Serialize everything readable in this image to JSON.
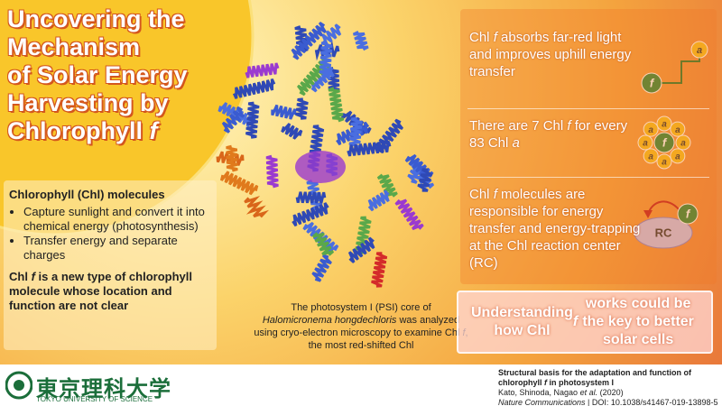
{
  "title": {
    "lines": [
      [
        "Uncovering the"
      ],
      [
        "Mechanism"
      ],
      [
        "of Solar Energy"
      ],
      [
        "Harvesting by"
      ],
      [
        "Chlorophyll ",
        {
          "italic": "f"
        }
      ]
    ]
  },
  "info_box": {
    "heading": "Chlorophyll (Chl) molecules",
    "bullets": [
      [
        "Capture sunlight and convert it into chemical energy (photosynthesis)"
      ],
      [
        "Transfer energy and separate charges"
      ]
    ],
    "note": [
      "Chl ",
      {
        "italic": "f"
      },
      " is a new type of chlorophyll molecule whose location and function are not clear"
    ]
  },
  "caption": {
    "lines": [
      [
        "The photosystem I (PSI) core of"
      ],
      [
        {
          "italic": "Halomicronema hongdechloris"
        },
        " was analyzed"
      ],
      [
        "using cryo-electron microscopy to examine Chl ",
        {
          "italic": "f"
        },
        ","
      ],
      [
        "the most red-shifted Chl"
      ]
    ]
  },
  "facts": [
    {
      "text": [
        "Chl ",
        {
          "italic": "f"
        },
        " absorbs far-red light and improves uphill energy transfer"
      ],
      "icon": {
        "low": "f",
        "high": "a"
      }
    },
    {
      "text": [
        "There are 7 Chl ",
        {
          "italic": "f"
        },
        " for every 83 Chl ",
        {
          "italic": "a"
        }
      ],
      "icon": {
        "center": "f",
        "ring": [
          "a",
          "a",
          "a",
          "a",
          "a",
          "a",
          "a",
          "a"
        ]
      }
    },
    {
      "text": [
        "Chl ",
        {
          "italic": "f"
        },
        " molecules are responsible for energy transfer and energy-trapping at the Chl reaction center (RC)"
      ],
      "icon": {
        "center": "RC",
        "pigment": "f"
      }
    }
  ],
  "conclusion": [
    "Understanding how Chl ",
    {
      "italic": "f"
    },
    " works could be the key to better solar cells"
  ],
  "footer": {
    "logo": "東京理科大学",
    "logo_en": "TOKYO UNIVERSITY OF SCIENCE",
    "citation": {
      "title": [
        "Structural basis for the adaptation and function of chlorophyll ",
        {
          "italic": "f"
        },
        " in photosystem I"
      ],
      "authors": [
        "Kato, Shinoda, Nagao ",
        {
          "italic": "et al."
        },
        " (2020)"
      ],
      "source": [
        {
          "italic": "Nature Communications"
        },
        " | DOI: 10.1038/s41467-019-13898-5"
      ]
    }
  }
}
